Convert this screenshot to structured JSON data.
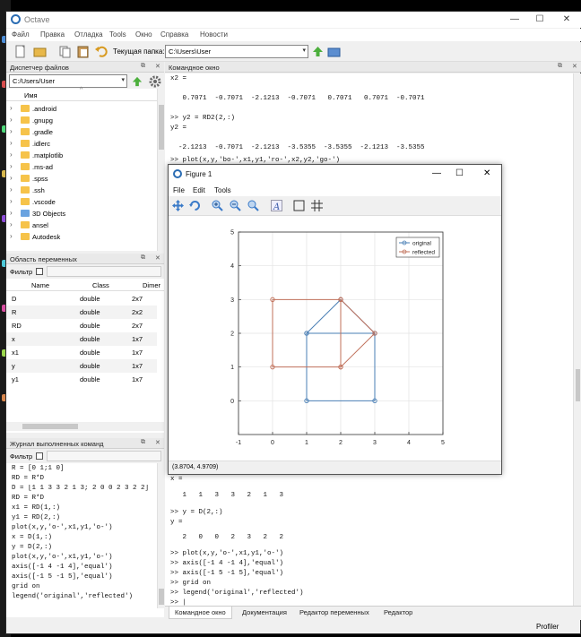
{
  "window": {
    "title": "Octave"
  },
  "menu": [
    "Файл",
    "Правка",
    "Отладка",
    "Tools",
    "Окно",
    "Справка",
    "Новости"
  ],
  "toolbar": {
    "folder_label": "Текущая папка:",
    "folder_value": "C:\\Users\\User"
  },
  "file_browser": {
    "title": "Диспетчер файлов",
    "path": "C:/Users/User",
    "column": "Имя",
    "items": [
      ".android",
      ".gnupg",
      ".gradle",
      ".idlerc",
      ".matplotlib",
      ".ms-ad",
      ".spss",
      ".ssh",
      ".vscode",
      "3D Objects",
      "ansel",
      "Autodesk"
    ]
  },
  "workspace": {
    "title": "Область переменных",
    "filter_label": "Фильтр",
    "columns": [
      "Name",
      "Class",
      "Dimer"
    ],
    "rows": [
      {
        "name": "D",
        "class": "double",
        "dim": "2x7"
      },
      {
        "name": "R",
        "class": "double",
        "dim": "2x2"
      },
      {
        "name": "RD",
        "class": "double",
        "dim": "2x7"
      },
      {
        "name": "x",
        "class": "double",
        "dim": "1x7"
      },
      {
        "name": "x1",
        "class": "double",
        "dim": "1x7"
      },
      {
        "name": "y",
        "class": "double",
        "dim": "1x7"
      },
      {
        "name": "y1",
        "class": "double",
        "dim": "1x7"
      }
    ]
  },
  "history": {
    "title": "Журнал выполненных команд",
    "filter_label": "Фильтр",
    "lines": [
      "R = [0 1;1 0]",
      "RD = R*D",
      "D = [1 1 3 3 2 1 3; 2 0 0 2 3 2 2]",
      "RD = R*D",
      "x1 = RD(1,:)",
      "y1 = RD(2,:)",
      "plot(x,y,'o-',x1,y1,'o-')",
      "x = D(1,:)",
      "y = D(2,:)",
      "plot(x,y,'o-',x1,y1,'o-')",
      "axis([-1 4 -1 4],'equal')",
      "axis([-1 5 -1 5],'equal')",
      "grid on",
      "legend('original','reflected')"
    ]
  },
  "command_window": {
    "title": "Командное окно",
    "top_lines": [
      "x2 =",
      "",
      "   0.7071  -0.7071  -2.1213  -0.7071   0.7071   0.7071  -0.7071",
      "",
      ">> y2 = RD2(2,:)",
      "y2 =",
      "",
      "  -2.1213  -0.7071  -2.1213  -3.5355  -3.5355  -2.1213  -3.5355",
      "",
      ">> plot(x,y,'bo-',x1,y1,'ro-',x2,y2,'go-')"
    ],
    "bottom_lines": [
      "x =",
      "",
      "   1   1   3   3   2   1   3",
      "",
      ">> y = D(2,:)",
      "y =",
      "",
      "   2   0   0   2   3   2   2",
      "",
      ">> plot(x,y,'o-',x1,y1,'o-')",
      ">> axis([-1 4 -1 4],'equal')",
      ">> axis([-1 5 -1 5],'equal')",
      ">> grid on",
      ">> legend('original','reflected')",
      ">> |"
    ]
  },
  "bottom_tabs": [
    "Командное окно",
    "Документация",
    "Редактор переменных",
    "Редактор"
  ],
  "status": {
    "profiler": "Profiler"
  },
  "figure": {
    "title": "Figure 1",
    "menu": [
      "File",
      "Edit",
      "Tools"
    ],
    "coords": "(3.8704, 4.9709)"
  },
  "chart_data": {
    "type": "line",
    "xlim": [
      -1,
      5
    ],
    "ylim": [
      -1,
      5
    ],
    "xticks": [
      -1,
      0,
      1,
      2,
      3,
      4,
      5
    ],
    "yticks": [
      0,
      1,
      2,
      3,
      4,
      5
    ],
    "grid": true,
    "legend_position": "top-right",
    "series": [
      {
        "name": "original",
        "color": "#4a7fb5",
        "x": [
          1,
          1,
          3,
          3,
          2,
          1,
          3
        ],
        "y": [
          2,
          0,
          0,
          2,
          3,
          2,
          2
        ]
      },
      {
        "name": "reflected",
        "color": "#c0705a",
        "x": [
          2,
          0,
          0,
          2,
          3,
          2,
          2
        ],
        "y": [
          1,
          1,
          3,
          3,
          2,
          1,
          3
        ]
      }
    ]
  },
  "colors": {
    "accent": "#3b78c3",
    "window_bg": "#f0f0f0"
  }
}
